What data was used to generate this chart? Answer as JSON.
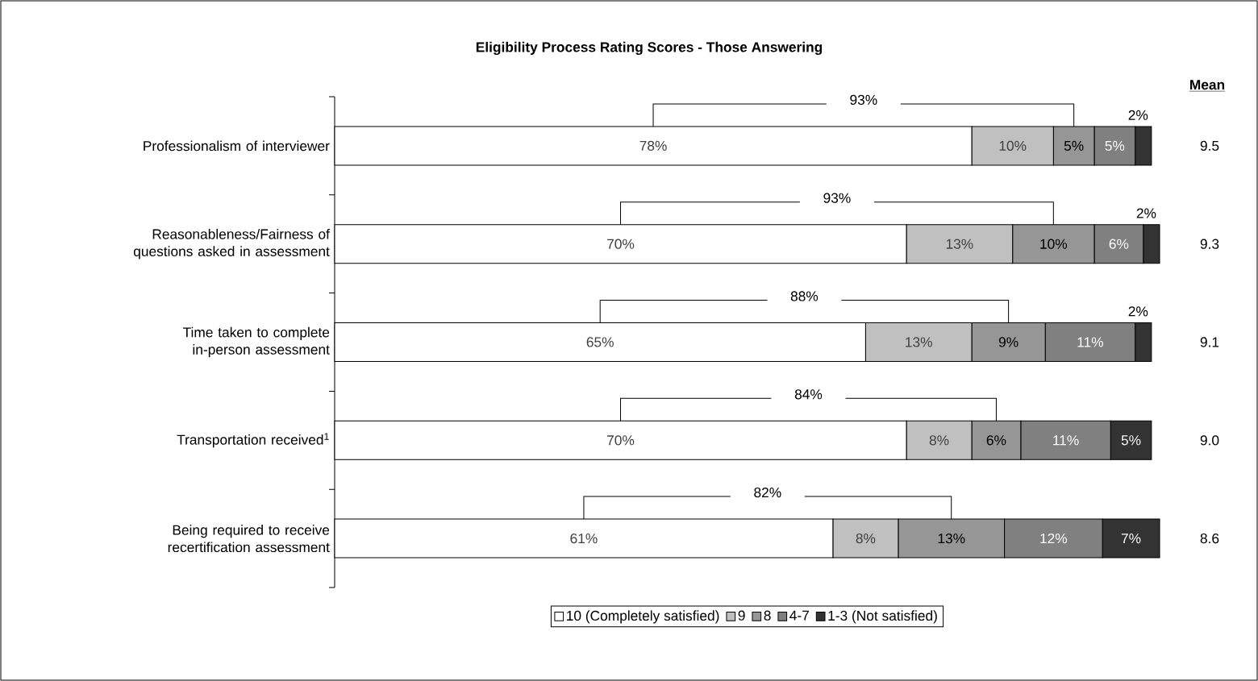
{
  "chart_data": {
    "type": "bar",
    "orientation": "horizontal",
    "stacked": true,
    "title": "Eligibility Process Rating Scores - Those Answering",
    "categories": [
      "Professionalism of interviewer",
      "Reasonableness/Fairness of questions asked in assessment",
      "Time taken to complete in-person assessment",
      "Transportation received$^{1}$",
      "Being required to receive recertification assessment"
    ],
    "series": [
      {
        "name": "10 (Completely satisfied)",
        "color": "#ffffff",
        "values": [
          78,
          70,
          65,
          70,
          61
        ],
        "value_labels": [
          "78%",
          "70%",
          "65%",
          "70%",
          "61%"
        ]
      },
      {
        "name": "9",
        "color": "#c0c0c0",
        "values": [
          10,
          13,
          13,
          8,
          8
        ],
        "value_labels": [
          "10%",
          "13%",
          "13%",
          "8%",
          "8%"
        ]
      },
      {
        "name": "8",
        "color": "#969696",
        "values": [
          5,
          10,
          9,
          6,
          13
        ],
        "value_labels": [
          "5%",
          "10%",
          "9%",
          "6%",
          "13%"
        ]
      },
      {
        "name": "4-7",
        "color": "#808080",
        "values": [
          5,
          6,
          11,
          11,
          12
        ],
        "value_labels": [
          "5%",
          "6%",
          "11%",
          "11%",
          "12%"
        ]
      },
      {
        "name": "1-3 (Not satisfied)",
        "color": "#333333",
        "values": [
          2,
          2,
          2,
          5,
          7
        ],
        "value_labels": [
          "2%",
          "2%",
          "2%",
          "5%",
          "7%"
        ]
      }
    ],
    "xlim": [
      0,
      101
    ],
    "legend": "bottom",
    "annotations": [
      "93%",
      "93%",
      "88%",
      "84%",
      "82%",
      "Mean",
      "9.5",
      "9.3",
      "9.1",
      "9.0",
      "8.6"
    ]
  }
}
